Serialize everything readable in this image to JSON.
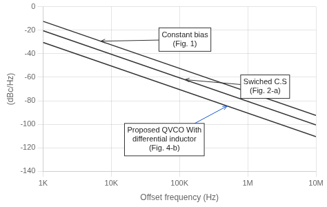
{
  "chart_data": {
    "type": "line",
    "xlabel": "Offset frequency (Hz)",
    "ylabel": "(dBc/Hz)",
    "log": "x",
    "grid": true,
    "x": [
      1000,
      10000000
    ],
    "series": [
      {
        "color": "#333333",
        "values": [
          -12.45757490560675,
          -92.45757490560675
        ]
      },
      {
        "color": "#333333",
        "values": [
          -20.45757490560675,
          -100.45757490560675
        ]
      },
      {
        "color": "#333333",
        "values": [
          -30.45757490560675,
          -110.45757490560675
        ]
      }
    ],
    "xlim": [
      1000,
      10000000
    ],
    "xticks": [
      {
        "value": 1000,
        "label": "1K"
      },
      {
        "value": 10000,
        "label": "10K"
      },
      {
        "value": 100000,
        "label": "100K"
      },
      {
        "value": 1000000,
        "label": "1M"
      },
      {
        "value": 10000000,
        "label": "10M"
      }
    ],
    "ylim": [
      -140,
      0
    ],
    "yticks": [
      -140,
      -120,
      -100,
      -80,
      -60,
      -40,
      -20,
      0
    ],
    "annotations": [
      {
        "text": "Constant bias\n(Fig. 1)",
        "x": 7000,
        "y": -29.35953570589189,
        "text_x": 120000,
        "text_y": -28,
        "color": "#333333"
      },
      {
        "text": "Swiched C.S\n(Fig. 2-a)",
        "x": 120000,
        "y": -62.04119982655925,
        "text_x": 1800000,
        "text_y": -68,
        "color": "#333333"
      },
      {
        "text": "Proposed QVCO With\ndifferential inductor\n(Fig. 4-b)",
        "x": 500000,
        "y": -84.43697499232714,
        "text_x": 60000,
        "text_y": -113,
        "color": "#1a55cc"
      }
    ]
  }
}
